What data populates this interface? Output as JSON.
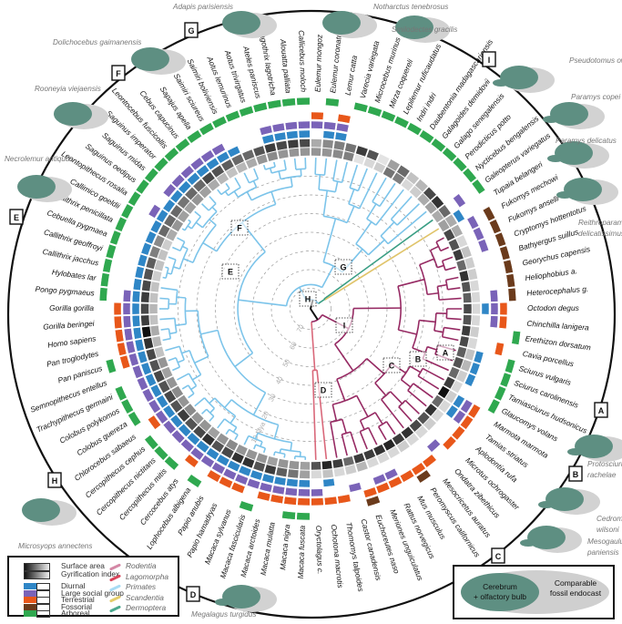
{
  "legend": {
    "gradient": [
      "Surface area",
      "Gyrification index"
    ],
    "traits": [
      {
        "code": "d",
        "label": "Diurnal",
        "color": "#2f86c6"
      },
      {
        "code": "s",
        "label": "Large social group",
        "color": "#7a63b8"
      },
      {
        "code": "t",
        "label": "Terrestrial",
        "color": "#e8571a"
      },
      {
        "code": "f",
        "label": "Fossorial",
        "color": "#6b3b1c"
      },
      {
        "code": "a",
        "label": "Arboreal",
        "color": "#2fa84f"
      }
    ],
    "clades": [
      {
        "code": "r",
        "label": "Rodentia",
        "color": "#d488a6",
        "tree_color": "#962a63"
      },
      {
        "code": "l",
        "label": "Lagomorpha",
        "color": "#d9455a",
        "tree_color": "#d9687a"
      },
      {
        "code": "p",
        "label": "Primates",
        "color": "#a8dcf4",
        "tree_color": "#7cc4ea"
      },
      {
        "code": "s",
        "label": "Scandentia",
        "color": "#e3cd6a",
        "tree_color": "#e0c46a"
      },
      {
        "code": "m",
        "label": "Dermoptera",
        "color": "#4aa88e",
        "tree_color": "#3a9e84"
      }
    ]
  },
  "endocast_legend": {
    "inner": "Cerebrum\n+ olfactory bulb",
    "outer": "Comparable\nfossil endocast"
  },
  "time_scale": {
    "unit_label": "10 Mya",
    "ticks": [
      10,
      20,
      30,
      40,
      50,
      60,
      70
    ]
  },
  "tree_nodes": [
    "H",
    "E",
    "F",
    "G",
    "I",
    "A",
    "B",
    "C",
    "D"
  ],
  "fossils": [
    {
      "name": "Adapis parisiensis",
      "node": "G"
    },
    {
      "name": "Notharctus tenebrosus"
    },
    {
      "name": "Smilodectes gracilis"
    },
    {
      "name": "Pseudotomus oweni",
      "node": "I"
    },
    {
      "name": "Paramys copei"
    },
    {
      "name": "Paramys delicatus"
    },
    {
      "name": "Reithroparamys delicatissimus"
    },
    {
      "name": "Protosciurus rachelae",
      "node": "A"
    },
    {
      "name": "Cedromus wilsoni",
      "node": "B"
    },
    {
      "name": "Mesogaulus paniensis",
      "node": "C"
    },
    {
      "name": "Megalagus turgidus",
      "node": "D"
    },
    {
      "name": "Microsyops annectens",
      "node": "H"
    },
    {
      "name": "Necrolemur antiquus",
      "node": "E"
    },
    {
      "name": "Rooneyia viejaensis"
    },
    {
      "name": "Dolichocebus gaimanensis",
      "node": "F"
    }
  ],
  "species": [
    {
      "n": "Eulemur mongoz",
      "c": "p",
      "sa": 0.4,
      "gi": 0.3,
      "t": "ts"
    },
    {
      "n": "Eulemur coronatus",
      "c": "p",
      "sa": 0.4,
      "gi": 0.45,
      "t": "sda"
    },
    {
      "n": "Lemur catta",
      "c": "p",
      "sa": 0.45,
      "gi": 0.5,
      "t": "tsd"
    },
    {
      "n": "Varecia variegata",
      "c": "p",
      "sa": 0.5,
      "gi": 0.55,
      "t": "a"
    },
    {
      "n": "Microcebus murinus",
      "c": "p",
      "sa": 0.05,
      "gi": 0.8,
      "t": "a"
    },
    {
      "n": "Mirza coquereli",
      "c": "p",
      "sa": 0.1,
      "gi": 0.7,
      "t": "a"
    },
    {
      "n": "Lepilemur ruficaudatus",
      "c": "p",
      "sa": 0.15,
      "gi": 0.05,
      "t": "a"
    },
    {
      "n": "Indri indri",
      "c": "p",
      "sa": 0.55,
      "gi": 0.35,
      "t": "a"
    },
    {
      "n": "Daubentonia madagascariensis",
      "c": "p",
      "sa": 0.5,
      "gi": 0.6,
      "t": "a"
    },
    {
      "n": "Galagoides demidovii",
      "c": "p",
      "sa": 0.1,
      "gi": 0.2,
      "t": "a"
    },
    {
      "n": "Galago senegalensis",
      "c": "p",
      "sa": 0.15,
      "gi": 0.25,
      "t": "a"
    },
    {
      "n": "Perodicticus potto",
      "c": "p",
      "sa": 0.3,
      "gi": 0.75,
      "t": "a"
    },
    {
      "n": "Nycticebus bengalensis",
      "c": "p",
      "sa": 0.35,
      "gi": 0.85,
      "t": "a"
    },
    {
      "n": "Galeopterus variegatus",
      "c": "m",
      "sa": 0.3,
      "gi": 0.6,
      "t": "as"
    },
    {
      "n": "Tupaia belangeri",
      "c": "s",
      "sa": 0.35,
      "gi": 0.3,
      "t": "d"
    },
    {
      "n": "Fukomys mechowi",
      "c": "r",
      "sa": 0.75,
      "gi": 0.3,
      "t": "fs"
    },
    {
      "n": "Fukomys anselli",
      "c": "r",
      "sa": 0.7,
      "gi": 0.1,
      "t": "fs"
    },
    {
      "n": "Cryptomys hottentotus",
      "c": "r",
      "sa": 0.8,
      "gi": 0.2,
      "t": "fs"
    },
    {
      "n": "Bathyergus suillus",
      "c": "r",
      "sa": 0.6,
      "gi": 0.15,
      "t": "f"
    },
    {
      "n": "Georychus capensis",
      "c": "r",
      "sa": 0.85,
      "gi": 0.15,
      "t": "f"
    },
    {
      "n": "Heliophobius a.",
      "c": "r",
      "sa": 0.7,
      "gi": 0.1,
      "t": "f"
    },
    {
      "n": "Heterocephalus g.",
      "c": "r",
      "sa": 0.65,
      "gi": 0.1,
      "t": "fs"
    },
    {
      "n": "Octodon degus",
      "c": "r",
      "sa": 0.75,
      "gi": 0.1,
      "t": "dst"
    },
    {
      "n": "Chinchilla lanigera",
      "c": "r",
      "sa": 0.7,
      "gi": 0.1,
      "t": "st"
    },
    {
      "n": "Erethizon dorsatum",
      "c": "r",
      "sa": 0.8,
      "gi": 0.15,
      "t": "a"
    },
    {
      "n": "Cavia porcellus",
      "c": "r",
      "sa": 0.75,
      "gi": 0.1,
      "t": "t"
    },
    {
      "n": "Sciurus vulgaris",
      "c": "r",
      "sa": 0.65,
      "gi": 0.2,
      "t": "da"
    },
    {
      "n": "Sciurus carolinensis",
      "c": "r",
      "sa": 0.7,
      "gi": 0.25,
      "t": "da"
    },
    {
      "n": "Tamiasciurus hudsonicus",
      "c": "r",
      "sa": 0.6,
      "gi": 0.15,
      "t": "da"
    },
    {
      "n": "Glaucomys volans",
      "c": "r",
      "sa": 0.8,
      "gi": 0.1,
      "t": "a"
    },
    {
      "n": "Marmota marmota",
      "c": "r",
      "sa": 1.0,
      "gi": 0.15,
      "t": "dst"
    },
    {
      "n": "Tamias striatus",
      "c": "r",
      "sa": 0.6,
      "gi": 0.1,
      "t": "dst"
    },
    {
      "n": "Aplodontia rufa",
      "c": "r",
      "sa": 0.85,
      "gi": 0.1,
      "t": "t"
    },
    {
      "n": "Microtus ochrogaster",
      "c": "r",
      "sa": 0.7,
      "gi": 0.15,
      "t": "t"
    },
    {
      "n": "Ondatra zibethicus",
      "c": "r",
      "sa": 0.75,
      "gi": 0.1,
      "t": "s"
    },
    {
      "n": "Mesocricetus auratus",
      "c": "r",
      "sa": 0.85,
      "gi": 0.1,
      "t": "t"
    },
    {
      "n": "Peromyscus californicus",
      "c": "r",
      "sa": 0.8,
      "gi": 0.15,
      "t": "tf"
    },
    {
      "n": "Mus musculus",
      "c": "r",
      "sa": 0.9,
      "gi": 0.1,
      "t": "t"
    },
    {
      "n": "Rattus norvegicus",
      "c": "r",
      "sa": 0.85,
      "gi": 0.1,
      "t": "st"
    },
    {
      "n": "Meriones unguiculatus",
      "c": "r",
      "sa": 0.8,
      "gi": 0.1,
      "t": "st"
    },
    {
      "n": "Euchoreutes naso",
      "c": "r",
      "sa": 0.8,
      "gi": 0.25,
      "t": "tf"
    },
    {
      "n": "Castor canadensis",
      "c": "r",
      "sa": 0.6,
      "gi": 0.15,
      "t": "s"
    },
    {
      "n": "Thomomys talpoides",
      "c": "r",
      "sa": 0.8,
      "gi": 0.1,
      "t": "t"
    },
    {
      "n": "Ochotona macrotis",
      "c": "l",
      "sa": 0.9,
      "gi": 0.2,
      "t": "dt"
    },
    {
      "n": "Oryctolagus c.",
      "c": "l",
      "sa": 0.7,
      "gi": 0.1,
      "t": "st"
    },
    {
      "n": "Macaca fuscata",
      "c": "p",
      "sa": 0.35,
      "gi": 0.35,
      "t": "dsta"
    },
    {
      "n": "Macaca nigra",
      "c": "p",
      "sa": 0.4,
      "gi": 0.55,
      "t": "dsta"
    },
    {
      "n": "Macaca mulatta",
      "c": "p",
      "sa": 0.4,
      "gi": 0.65,
      "t": "dst"
    },
    {
      "n": "Macaca arctoides",
      "c": "p",
      "sa": 0.35,
      "gi": 0.8,
      "t": "dst"
    },
    {
      "n": "Macaca fascicularis",
      "c": "p",
      "sa": 0.4,
      "gi": 0.7,
      "t": "dsa"
    },
    {
      "n": "Macaca sylvanus",
      "c": "p",
      "sa": 0.4,
      "gi": 0.85,
      "t": "dst"
    },
    {
      "n": "Papio hamadryas",
      "c": "p",
      "sa": 0.4,
      "gi": 0.85,
      "t": "dst"
    },
    {
      "n": "Papio anubis",
      "c": "p",
      "sa": 0.45,
      "gi": 0.75,
      "t": "dst"
    },
    {
      "n": "Lophocebus albigena",
      "c": "p",
      "sa": 0.4,
      "gi": 0.7,
      "t": "dsa"
    },
    {
      "n": "Cercocebus atys",
      "c": "p",
      "sa": 0.35,
      "gi": 0.85,
      "t": "dst"
    },
    {
      "n": "Cercopithecus mitis",
      "c": "p",
      "sa": 0.4,
      "gi": 0.75,
      "t": "dsa"
    },
    {
      "n": "Cercopithecus nictitans",
      "c": "p",
      "sa": 0.4,
      "gi": 0.7,
      "t": "dsa"
    },
    {
      "n": "Cercopithecus cephus",
      "c": "p",
      "sa": 0.45,
      "gi": 0.8,
      "t": "dsa"
    },
    {
      "n": "Chlorocebus sabaeus",
      "c": "p",
      "sa": 0.4,
      "gi": 0.7,
      "t": "dst"
    },
    {
      "n": "Colobus guereza",
      "c": "p",
      "sa": 0.45,
      "gi": 0.75,
      "t": "dsa"
    },
    {
      "n": "Colobus polykomos",
      "c": "p",
      "sa": 0.4,
      "gi": 0.7,
      "t": "dsa"
    },
    {
      "n": "Trachypithecus germaini",
      "c": "p",
      "sa": 0.35,
      "gi": 0.75,
      "t": "dsa"
    },
    {
      "n": "Semnopithecus entellus",
      "c": "p",
      "sa": 0.4,
      "gi": 0.7,
      "t": "ds"
    },
    {
      "n": "Pan paniscus",
      "c": "p",
      "sa": 0.2,
      "gi": 0.75,
      "t": "dsta"
    },
    {
      "n": "Pan troglodytes",
      "c": "p",
      "sa": 0.25,
      "gi": 0.85,
      "t": "dst"
    },
    {
      "n": "Homo sapiens",
      "c": "p",
      "sa": 0.3,
      "gi": 1.0,
      "t": "dst"
    },
    {
      "n": "Gorilla beringei",
      "c": "p",
      "sa": 0.2,
      "gi": 0.8,
      "t": "dst"
    },
    {
      "n": "Gorilla gorilla",
      "c": "p",
      "sa": 0.25,
      "gi": 0.75,
      "t": "dst"
    },
    {
      "n": "Pongo pygmaeus",
      "c": "p",
      "sa": 0.2,
      "gi": 0.8,
      "t": "dsa"
    },
    {
      "n": "Hylobates lar",
      "c": "p",
      "sa": 0.2,
      "gi": 0.75,
      "t": "da"
    },
    {
      "n": "Callithrix jacchus",
      "c": "p",
      "sa": 0.15,
      "gi": 0.7,
      "t": "da"
    },
    {
      "n": "Callithrix geoffroyi",
      "c": "p",
      "sa": 0.2,
      "gi": 0.65,
      "t": "da"
    },
    {
      "n": "Cebuella pygmaea",
      "c": "p",
      "sa": 0.2,
      "gi": 0.5,
      "t": "da"
    },
    {
      "n": "Callithrix penicillata",
      "c": "p",
      "sa": 0.15,
      "gi": 0.45,
      "t": "da"
    },
    {
      "n": "Callimico goeldii",
      "c": "p",
      "sa": 0.3,
      "gi": 0.6,
      "t": "da"
    },
    {
      "n": "Leontopithecus rosalia",
      "c": "p",
      "sa": 0.4,
      "gi": 0.6,
      "t": "dsa"
    },
    {
      "n": "Saguinus oedipus",
      "c": "p",
      "sa": 0.35,
      "gi": 0.6,
      "t": "da"
    },
    {
      "n": "Saguinus midas",
      "c": "p",
      "sa": 0.35,
      "gi": 0.55,
      "t": "dsa"
    },
    {
      "n": "Saguinus imperator",
      "c": "p",
      "sa": 0.4,
      "gi": 0.6,
      "t": "dsa"
    },
    {
      "n": "Leontocebus fuscicollis",
      "c": "p",
      "sa": 0.35,
      "gi": 0.6,
      "t": "dsa"
    },
    {
      "n": "Cebus capucinus",
      "c": "p",
      "sa": 0.3,
      "gi": 0.75,
      "t": "dsa"
    },
    {
      "n": "Sapajus apella",
      "c": "p",
      "sa": 0.25,
      "gi": 0.7,
      "t": "dsa"
    },
    {
      "n": "Saimiri sciureus",
      "c": "p",
      "sa": 0.2,
      "gi": 0.65,
      "t": "dsa"
    },
    {
      "n": "Saimiri boliviensis",
      "c": "p",
      "sa": 0.25,
      "gi": 0.6,
      "t": "da"
    },
    {
      "n": "Aotus lemurinus",
      "c": "p",
      "sa": 0.3,
      "gi": 0.6,
      "t": "a"
    },
    {
      "n": "Aotus trivirgatus",
      "c": "p",
      "sa": 0.4,
      "gi": 0.7,
      "t": "a"
    },
    {
      "n": "Ateles paniscus",
      "c": "p",
      "sa": 0.45,
      "gi": 0.8,
      "t": "dsa"
    },
    {
      "n": "Lagothrix lagotricha",
      "c": "p",
      "sa": 0.4,
      "gi": 0.75,
      "t": "dsa"
    },
    {
      "n": "Alouatta palliata",
      "c": "p",
      "sa": 0.4,
      "gi": 0.8,
      "t": "dsa"
    },
    {
      "n": "Callicebus moloch",
      "c": "p",
      "sa": 0.4,
      "gi": 0.75,
      "t": "dsa"
    }
  ]
}
